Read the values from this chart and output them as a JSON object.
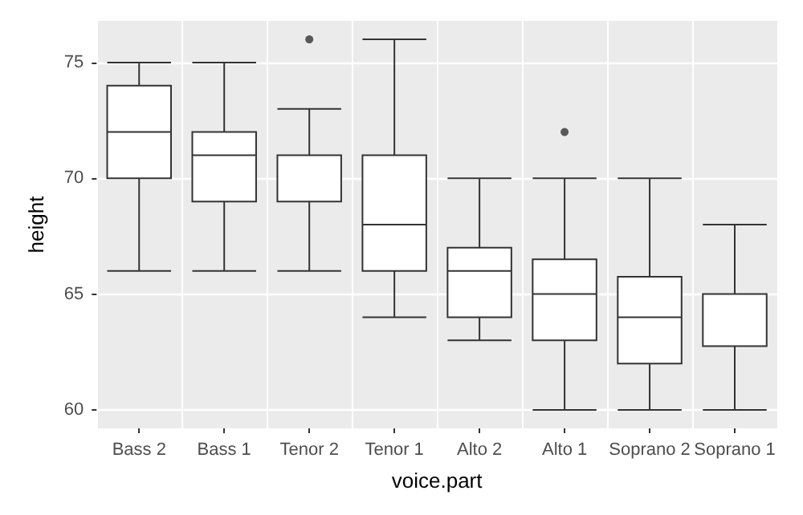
{
  "chart_data": {
    "type": "box",
    "xlabel": "voice.part",
    "ylabel": "height",
    "categories": [
      "Bass 2",
      "Bass 1",
      "Tenor 2",
      "Tenor 1",
      "Alto 2",
      "Alto 1",
      "Soprano 2",
      "Soprano 1"
    ],
    "boxes": [
      {
        "low": 66,
        "q1": 70,
        "median": 72,
        "q3": 74,
        "high": 75
      },
      {
        "low": 66,
        "q1": 69,
        "median": 71,
        "q3": 72,
        "high": 75
      },
      {
        "low": 66,
        "q1": 69,
        "median": 69,
        "q3": 71,
        "high": 73,
        "outliers": [
          76
        ]
      },
      {
        "low": 64,
        "q1": 66,
        "median": 68,
        "q3": 71,
        "high": 76
      },
      {
        "low": 63,
        "q1": 64,
        "median": 66,
        "q3": 67,
        "high": 70
      },
      {
        "low": 60,
        "q1": 63,
        "median": 65,
        "q3": 66.5,
        "high": 70,
        "outliers": [
          72
        ]
      },
      {
        "low": 60,
        "q1": 62,
        "median": 64,
        "q3": 65.75,
        "high": 70
      },
      {
        "low": 60,
        "q1": 62.75,
        "median": 65,
        "q3": 65,
        "high": 68
      }
    ],
    "color": "#333333",
    "ylim": [
      59.2,
      76.8
    ],
    "yticks": [
      60,
      65,
      70,
      75
    ],
    "grid": true
  }
}
